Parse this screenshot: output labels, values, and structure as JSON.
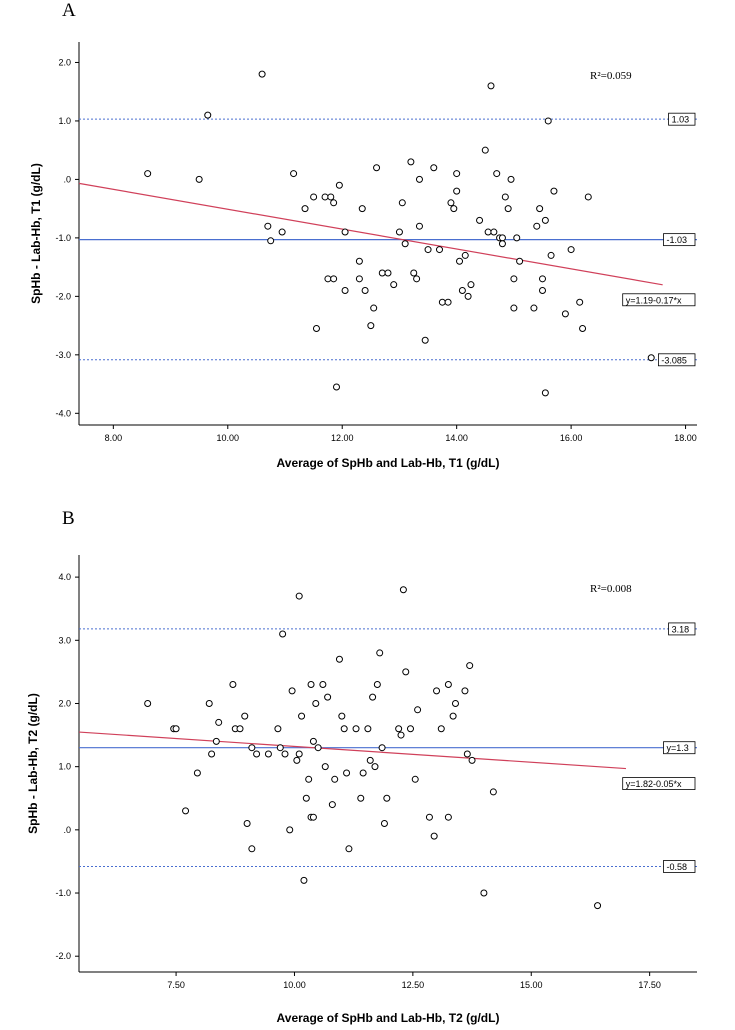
{
  "chart_data": [
    {
      "panel": "A",
      "type": "scatter",
      "xlabel": "Average of SpHb and Lab-Hb, T1 (g/dL)",
      "ylabel": "SpHb - Lab-Hb, T1 (g/dL)",
      "xlim": [
        7.4,
        18.2
      ],
      "ylim": [
        -4.2,
        2.35
      ],
      "xticks": [
        8,
        10,
        12,
        14,
        16,
        18
      ],
      "xtick_labels": [
        "8.00",
        "10.00",
        "12.00",
        "14.00",
        "16.00",
        "18.00"
      ],
      "yticks": [
        2,
        1,
        0,
        -1,
        -2,
        -3,
        -4
      ],
      "ytick_labels": [
        "2.0",
        "1.0",
        ".0",
        "-1.0",
        "-2.0",
        "-3.0",
        "-4.0"
      ],
      "r2_label": "R²=0.059",
      "mean": {
        "value": -1.03,
        "label": "-1.03"
      },
      "upper_loa": {
        "value": 1.03,
        "label": "1.03"
      },
      "lower_loa": {
        "value": -3.085,
        "label": "-3.085"
      },
      "regression": {
        "intercept": 1.19,
        "slope": -0.17,
        "label": "y=1.19-0.17*x",
        "x_end": 17.6
      },
      "points": [
        [
          8.6,
          0.1
        ],
        [
          9.5,
          0.0
        ],
        [
          9.65,
          1.1
        ],
        [
          10.6,
          1.8
        ],
        [
          10.7,
          -0.8
        ],
        [
          10.75,
          -1.05
        ],
        [
          10.95,
          -0.9
        ],
        [
          11.15,
          0.1
        ],
        [
          11.35,
          -0.5
        ],
        [
          11.5,
          -0.3
        ],
        [
          11.55,
          -2.55
        ],
        [
          11.7,
          -0.3
        ],
        [
          11.75,
          -1.7
        ],
        [
          11.8,
          -0.3
        ],
        [
          11.85,
          -1.7
        ],
        [
          11.85,
          -0.4
        ],
        [
          11.9,
          -3.55
        ],
        [
          11.95,
          -0.1
        ],
        [
          12.05,
          -0.9
        ],
        [
          12.05,
          -1.9
        ],
        [
          12.3,
          -1.7
        ],
        [
          12.3,
          -1.4
        ],
        [
          12.35,
          -0.5
        ],
        [
          12.4,
          -1.9
        ],
        [
          12.5,
          -2.5
        ],
        [
          12.55,
          -2.2
        ],
        [
          12.6,
          0.2
        ],
        [
          12.7,
          -1.6
        ],
        [
          12.8,
          -1.6
        ],
        [
          12.9,
          -1.8
        ],
        [
          13.0,
          -0.9
        ],
        [
          13.05,
          -0.4
        ],
        [
          13.1,
          -1.1
        ],
        [
          13.2,
          0.3
        ],
        [
          13.25,
          -1.6
        ],
        [
          13.3,
          -1.7
        ],
        [
          13.35,
          -0.8
        ],
        [
          13.35,
          0.0
        ],
        [
          13.45,
          -2.75
        ],
        [
          13.5,
          -1.2
        ],
        [
          13.6,
          0.2
        ],
        [
          13.7,
          -1.2
        ],
        [
          13.75,
          -2.1
        ],
        [
          13.85,
          -2.1
        ],
        [
          13.9,
          -0.4
        ],
        [
          13.95,
          -0.5
        ],
        [
          14.0,
          0.1
        ],
        [
          14.0,
          -0.2
        ],
        [
          14.05,
          -1.4
        ],
        [
          14.1,
          -1.9
        ],
        [
          14.15,
          -1.3
        ],
        [
          14.2,
          -2.0
        ],
        [
          14.25,
          -1.8
        ],
        [
          14.4,
          -0.7
        ],
        [
          14.5,
          0.5
        ],
        [
          14.55,
          -0.9
        ],
        [
          14.6,
          1.6
        ],
        [
          14.65,
          -0.9
        ],
        [
          14.7,
          0.1
        ],
        [
          14.75,
          -1.0
        ],
        [
          14.8,
          -1.0
        ],
        [
          14.8,
          -1.1
        ],
        [
          14.85,
          -0.3
        ],
        [
          14.9,
          -0.5
        ],
        [
          14.95,
          0.0
        ],
        [
          15.0,
          -1.7
        ],
        [
          15.0,
          -2.2
        ],
        [
          15.05,
          -1.0
        ],
        [
          15.1,
          -1.4
        ],
        [
          15.35,
          -2.2
        ],
        [
          15.4,
          -0.8
        ],
        [
          15.45,
          -0.5
        ],
        [
          15.5,
          -1.7
        ],
        [
          15.5,
          -1.9
        ],
        [
          15.55,
          -3.65
        ],
        [
          15.55,
          -0.7
        ],
        [
          15.6,
          1.0
        ],
        [
          15.65,
          -1.3
        ],
        [
          15.7,
          -0.2
        ],
        [
          15.9,
          -2.3
        ],
        [
          16.0,
          -1.2
        ],
        [
          16.15,
          -2.1
        ],
        [
          16.2,
          -2.55
        ],
        [
          16.3,
          -0.3
        ],
        [
          17.4,
          -3.05
        ]
      ]
    },
    {
      "panel": "B",
      "type": "scatter",
      "xlabel": "Average of SpHb and Lab-Hb, T2 (g/dL)",
      "ylabel": "SpHb - Lab-Hb, T2 (g/dL)",
      "xlim": [
        5.45,
        18.5
      ],
      "ylim": [
        -2.25,
        4.35
      ],
      "xticks": [
        7.5,
        10,
        12.5,
        15,
        17.5
      ],
      "xtick_labels": [
        "7.50",
        "10.00",
        "12.50",
        "15.00",
        "17.50"
      ],
      "yticks": [
        4,
        3,
        2,
        1,
        0,
        -1,
        -2
      ],
      "ytick_labels": [
        "4.0",
        "3.0",
        "2.0",
        "1.0",
        ".0",
        "-1.0",
        "-2.0"
      ],
      "r2_label": "R²=0.008",
      "mean": {
        "value": 1.3,
        "label": "y=1.3"
      },
      "upper_loa": {
        "value": 3.18,
        "label": "3.18"
      },
      "lower_loa": {
        "value": -0.58,
        "label": "-0.58"
      },
      "regression": {
        "intercept": 1.82,
        "slope": -0.05,
        "label": "y=1.82-0.05*x",
        "x_end": 17.0
      },
      "points": [
        [
          6.9,
          2.0
        ],
        [
          7.45,
          1.6
        ],
        [
          7.5,
          1.6
        ],
        [
          7.7,
          0.3
        ],
        [
          7.95,
          0.9
        ],
        [
          8.2,
          2.0
        ],
        [
          8.25,
          1.2
        ],
        [
          8.35,
          1.4
        ],
        [
          8.4,
          1.7
        ],
        [
          8.7,
          2.3
        ],
        [
          8.75,
          1.6
        ],
        [
          8.85,
          1.6
        ],
        [
          8.95,
          1.8
        ],
        [
          9.0,
          0.1
        ],
        [
          9.1,
          -0.3
        ],
        [
          9.1,
          1.3
        ],
        [
          9.2,
          1.2
        ],
        [
          9.45,
          1.2
        ],
        [
          9.65,
          1.6
        ],
        [
          9.7,
          1.3
        ],
        [
          9.75,
          3.1
        ],
        [
          9.8,
          1.2
        ],
        [
          9.9,
          0.0
        ],
        [
          9.95,
          2.2
        ],
        [
          10.05,
          1.1
        ],
        [
          10.1,
          1.2
        ],
        [
          10.1,
          3.7
        ],
        [
          10.15,
          1.8
        ],
        [
          10.2,
          -0.8
        ],
        [
          10.25,
          0.5
        ],
        [
          10.3,
          0.8
        ],
        [
          10.35,
          0.2
        ],
        [
          10.35,
          2.3
        ],
        [
          10.4,
          0.2
        ],
        [
          10.4,
          1.4
        ],
        [
          10.45,
          2.0
        ],
        [
          10.5,
          1.3
        ],
        [
          10.6,
          2.3
        ],
        [
          10.65,
          1.0
        ],
        [
          10.7,
          2.1
        ],
        [
          10.8,
          0.4
        ],
        [
          10.85,
          0.8
        ],
        [
          10.95,
          2.7
        ],
        [
          11.0,
          1.8
        ],
        [
          11.05,
          1.6
        ],
        [
          11.1,
          0.9
        ],
        [
          11.15,
          -0.3
        ],
        [
          11.3,
          1.6
        ],
        [
          11.4,
          0.5
        ],
        [
          11.45,
          0.9
        ],
        [
          11.55,
          1.6
        ],
        [
          11.6,
          1.1
        ],
        [
          11.65,
          2.1
        ],
        [
          11.7,
          1.0
        ],
        [
          11.75,
          2.3
        ],
        [
          11.8,
          2.8
        ],
        [
          11.85,
          1.3
        ],
        [
          11.9,
          0.1
        ],
        [
          11.95,
          0.5
        ],
        [
          12.2,
          1.6
        ],
        [
          12.25,
          1.5
        ],
        [
          12.3,
          3.8
        ],
        [
          12.35,
          2.5
        ],
        [
          12.45,
          1.6
        ],
        [
          12.55,
          0.8
        ],
        [
          12.6,
          1.9
        ],
        [
          12.85,
          0.2
        ],
        [
          12.95,
          -0.1
        ],
        [
          13.0,
          2.2
        ],
        [
          13.1,
          1.6
        ],
        [
          13.25,
          0.2
        ],
        [
          13.25,
          2.3
        ],
        [
          13.35,
          1.8
        ],
        [
          13.4,
          2.0
        ],
        [
          13.6,
          2.2
        ],
        [
          13.65,
          1.2
        ],
        [
          13.7,
          2.6
        ],
        [
          13.75,
          1.1
        ],
        [
          14.0,
          -1.0
        ],
        [
          14.2,
          0.6
        ],
        [
          16.4,
          -1.2
        ]
      ]
    }
  ]
}
